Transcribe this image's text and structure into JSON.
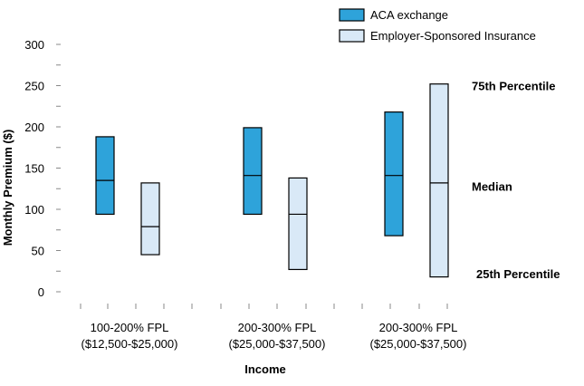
{
  "chart_data": {
    "type": "box",
    "title": "",
    "xlabel": "Income",
    "ylabel": "Monthly Premium ($)",
    "ylim": [
      0,
      300
    ],
    "yticks": [
      0,
      50,
      100,
      150,
      200,
      250,
      300
    ],
    "y_minor_step": 25,
    "grid": false,
    "legend_position": "top-right",
    "categories": [
      {
        "line1": "100-200% FPL",
        "line2": "($12,500-$25,000)"
      },
      {
        "line1": "200-300% FPL",
        "line2": "($25,000-$37,500)"
      },
      {
        "line1": "200-300% FPL",
        "line2": "($25,000-$37,500)"
      }
    ],
    "series": [
      {
        "name": "ACA exchange",
        "color": "#2ea3da",
        "boxes": [
          {
            "p25": 94,
            "median": 135,
            "p75": 188
          },
          {
            "p25": 94,
            "median": 141,
            "p75": 199
          },
          {
            "p25": 68,
            "median": 141,
            "p75": 218
          }
        ]
      },
      {
        "name": "Employer-Sponsored Insurance",
        "color": "#d9e9f7",
        "boxes": [
          {
            "p25": 45,
            "median": 79,
            "p75": 132
          },
          {
            "p25": 27,
            "median": 94,
            "p75": 138
          },
          {
            "p25": 18,
            "median": 132,
            "p75": 252
          }
        ]
      }
    ],
    "annotations": [
      {
        "text": "75th Percentile",
        "value": 250
      },
      {
        "text": "Median",
        "value": 128
      },
      {
        "text": "25th Percentile",
        "value": 22
      }
    ]
  }
}
